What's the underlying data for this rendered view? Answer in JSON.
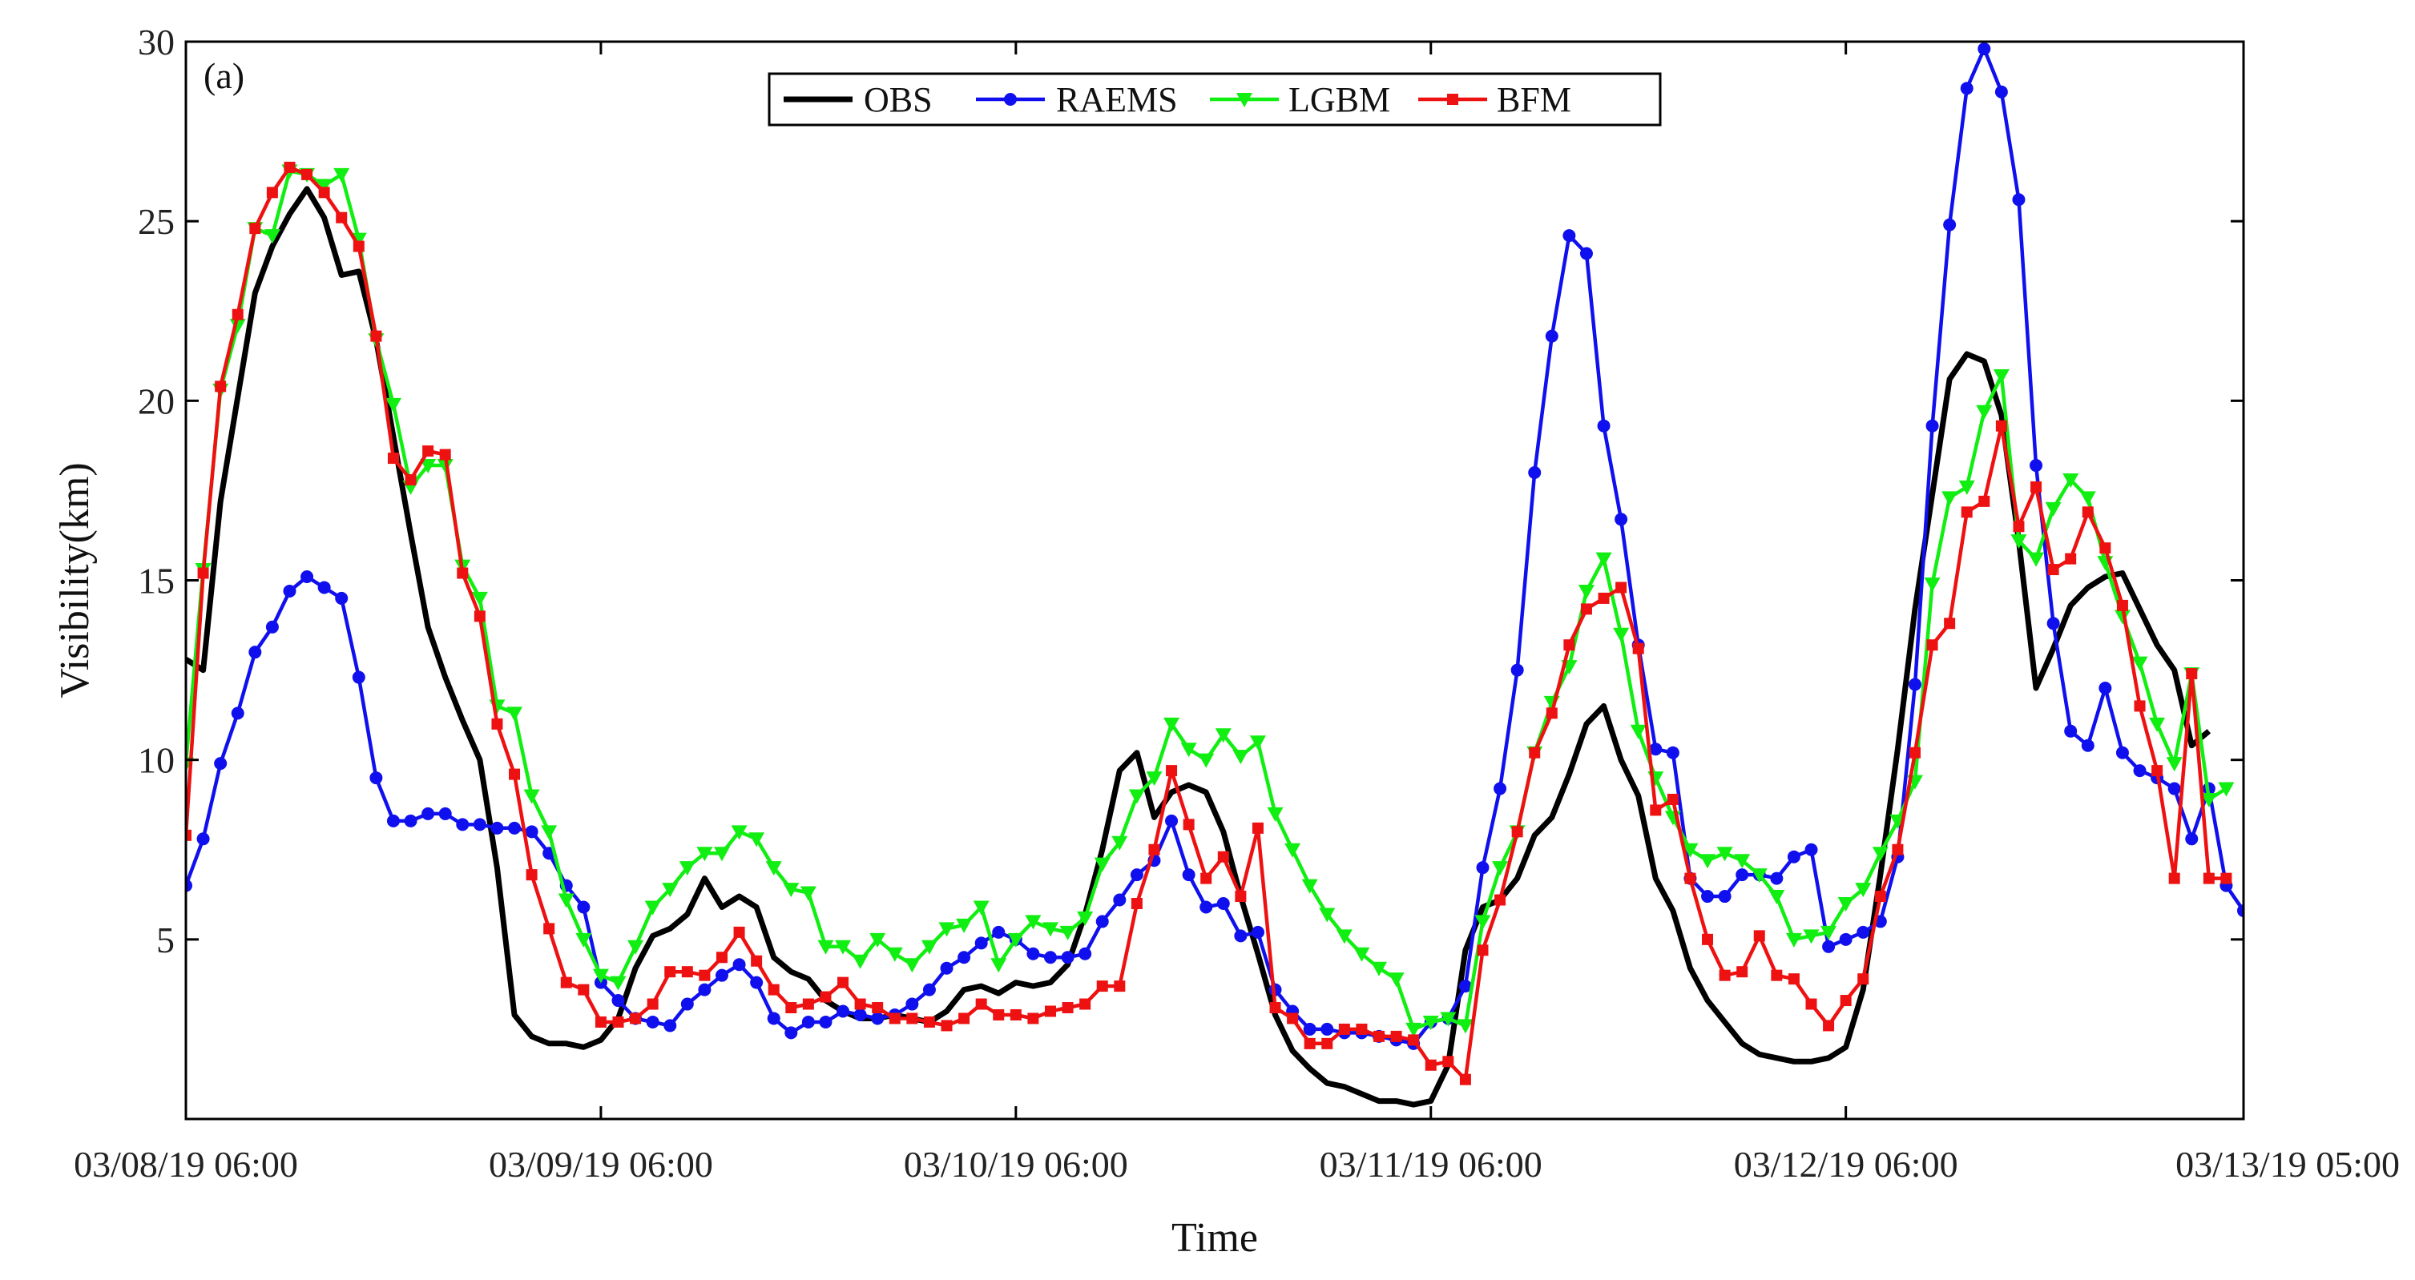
{
  "chart_data": {
    "type": "line",
    "panel_label": "(a)",
    "xlabel": "Time",
    "ylabel": "Visibility(km)",
    "ylim": [
      0,
      30
    ],
    "xlim": [
      0,
      119
    ],
    "yticks": [
      5,
      10,
      15,
      20,
      25,
      30
    ],
    "xticks": [
      {
        "t": 0,
        "label": "03/08/19 06:00"
      },
      {
        "t": 24,
        "label": "03/09/19 06:00"
      },
      {
        "t": 48,
        "label": "03/10/19 06:00"
      },
      {
        "t": 72,
        "label": "03/11/19 06:00"
      },
      {
        "t": 96,
        "label": "03/12/19 06:00"
      },
      {
        "t": 119,
        "label": "03/13/19 05:00"
      }
    ],
    "x_units": "hours since 03/08/19 06:00",
    "legend": [
      "OBS",
      "RAEMS",
      "LGBM",
      "BFM"
    ],
    "legend_location": "top-center",
    "series": [
      {
        "name": "OBS",
        "color": "#000000",
        "marker": "none",
        "values": [
          12.8,
          12.5,
          17.2,
          20.1,
          23.0,
          24.3,
          25.2,
          25.9,
          25.1,
          23.5,
          23.6,
          21.7,
          19.0,
          16.3,
          13.7,
          12.3,
          11.1,
          10.0,
          7.0,
          2.9,
          2.3,
          2.1,
          2.1,
          2.0,
          2.2,
          2.8,
          4.2,
          5.1,
          5.3,
          5.7,
          6.7,
          5.9,
          6.2,
          5.9,
          4.5,
          4.1,
          3.9,
          3.3,
          3.0,
          2.8,
          2.8,
          2.9,
          2.8,
          2.7,
          3.0,
          3.6,
          3.7,
          3.5,
          3.8,
          3.7,
          3.8,
          4.3,
          5.7,
          7.5,
          9.7,
          10.2,
          8.4,
          9.1,
          9.3,
          9.1,
          8.0,
          6.2,
          4.6,
          2.9,
          1.9,
          1.4,
          1.0,
          0.9,
          0.7,
          0.5,
          0.5,
          0.4,
          0.5,
          1.5,
          4.7,
          5.9,
          6.1,
          6.7,
          7.9,
          8.4,
          9.6,
          11.0,
          11.5,
          10.0,
          9.0,
          6.7,
          5.8,
          4.2,
          3.3,
          2.7,
          2.1,
          1.8,
          1.7,
          1.6,
          1.6,
          1.7,
          2.0,
          3.6,
          6.8,
          10.3,
          14.2,
          17.4,
          20.6,
          21.3,
          21.1,
          19.6,
          16.1,
          12.0,
          13.1,
          14.3,
          14.8,
          15.1,
          15.2,
          14.2,
          13.2,
          12.5,
          10.4,
          10.8
        ]
      },
      {
        "name": "RAEMS",
        "color": "#1010ee",
        "marker": "circle",
        "values": [
          6.5,
          7.8,
          9.9,
          11.3,
          13.0,
          13.7,
          14.7,
          15.1,
          14.8,
          14.5,
          12.3,
          9.5,
          8.3,
          8.3,
          8.5,
          8.5,
          8.2,
          8.2,
          8.1,
          8.1,
          8.0,
          7.4,
          6.5,
          5.9,
          3.8,
          3.3,
          2.8,
          2.7,
          2.6,
          3.2,
          3.6,
          4.0,
          4.3,
          3.8,
          2.8,
          2.4,
          2.7,
          2.7,
          3.0,
          2.9,
          2.8,
          2.9,
          3.2,
          3.6,
          4.2,
          4.5,
          4.9,
          5.2,
          5.0,
          4.6,
          4.5,
          4.5,
          4.6,
          5.5,
          6.1,
          6.8,
          7.2,
          8.3,
          6.8,
          5.9,
          6.0,
          5.1,
          5.2,
          3.6,
          3.0,
          2.5,
          2.5,
          2.4,
          2.4,
          2.3,
          2.2,
          2.1,
          2.7,
          2.8,
          3.7,
          7.0,
          9.2,
          12.5,
          18.0,
          21.8,
          24.6,
          24.1,
          19.3,
          16.7,
          13.2,
          10.3,
          10.2,
          6.7,
          6.2,
          6.2,
          6.8,
          6.8,
          6.7,
          7.3,
          7.5,
          4.8,
          5.0,
          5.2,
          5.5,
          7.3,
          12.1,
          19.3,
          24.9,
          28.7,
          29.8,
          28.6,
          25.6,
          18.2,
          13.8,
          10.8,
          10.4,
          12.0,
          10.2,
          9.7,
          9.5,
          9.2,
          7.8,
          9.2,
          6.5,
          5.8
        ]
      },
      {
        "name": "LGBM",
        "color": "#11ee11",
        "marker": "triangle-down",
        "values": [
          9.9,
          15.3,
          20.3,
          22.1,
          24.8,
          24.6,
          26.4,
          26.3,
          26.0,
          26.3,
          24.5,
          21.7,
          19.9,
          17.6,
          18.2,
          18.2,
          15.4,
          14.5,
          11.5,
          11.3,
          9.0,
          8.0,
          6.1,
          5.0,
          4.0,
          3.8,
          4.8,
          5.9,
          6.4,
          7.0,
          7.4,
          7.4,
          8.0,
          7.8,
          7.0,
          6.4,
          6.3,
          4.8,
          4.8,
          4.4,
          5.0,
          4.6,
          4.3,
          4.8,
          5.3,
          5.4,
          5.9,
          4.3,
          5.0,
          5.5,
          5.3,
          5.2,
          5.6,
          7.1,
          7.7,
          9.0,
          9.5,
          11.0,
          10.3,
          10.0,
          10.7,
          10.1,
          10.5,
          8.5,
          7.5,
          6.5,
          5.7,
          5.1,
          4.6,
          4.2,
          3.9,
          2.5,
          2.7,
          2.8,
          2.6,
          5.5,
          7.0,
          8.0,
          10.2,
          11.6,
          12.6,
          14.7,
          15.6,
          13.5,
          10.8,
          9.5,
          8.4,
          7.5,
          7.2,
          7.4,
          7.2,
          6.8,
          6.2,
          5.0,
          5.1,
          5.2,
          6.0,
          6.4,
          7.4,
          8.3,
          9.4,
          14.9,
          17.3,
          17.6,
          19.7,
          20.7,
          16.1,
          15.6,
          17.0,
          17.8,
          17.3,
          15.5,
          14.0,
          12.7,
          11.0,
          9.9,
          12.4,
          8.9,
          9.2
        ]
      },
      {
        "name": "BFM",
        "color": "#ee1111",
        "marker": "square",
        "values": [
          7.9,
          15.2,
          20.4,
          22.4,
          24.8,
          25.8,
          26.5,
          26.3,
          25.8,
          25.1,
          24.3,
          21.8,
          18.4,
          17.8,
          18.6,
          18.5,
          15.2,
          14.0,
          11.0,
          9.6,
          6.8,
          5.3,
          3.8,
          3.6,
          2.7,
          2.7,
          2.8,
          3.2,
          4.1,
          4.1,
          4.0,
          4.5,
          5.2,
          4.4,
          3.6,
          3.1,
          3.2,
          3.4,
          3.8,
          3.2,
          3.1,
          2.8,
          2.8,
          2.7,
          2.6,
          2.8,
          3.2,
          2.9,
          2.9,
          2.8,
          3.0,
          3.1,
          3.2,
          3.7,
          3.7,
          6.0,
          7.5,
          9.7,
          8.2,
          6.7,
          7.3,
          6.2,
          8.1,
          3.1,
          2.8,
          2.1,
          2.1,
          2.5,
          2.5,
          2.3,
          2.3,
          2.2,
          1.5,
          1.6,
          1.1,
          4.7,
          6.1,
          8.0,
          10.2,
          11.3,
          13.2,
          14.2,
          14.5,
          14.8,
          13.1,
          8.6,
          8.9,
          6.7,
          5.0,
          4.0,
          4.1,
          5.1,
          4.0,
          3.9,
          3.2,
          2.6,
          3.3,
          3.9,
          6.2,
          7.5,
          10.2,
          13.2,
          13.8,
          16.9,
          17.2,
          19.3,
          16.5,
          17.6,
          15.3,
          15.6,
          16.9,
          15.9,
          14.3,
          11.5,
          9.7,
          6.7,
          12.4,
          6.7,
          6.7
        ]
      }
    ]
  }
}
